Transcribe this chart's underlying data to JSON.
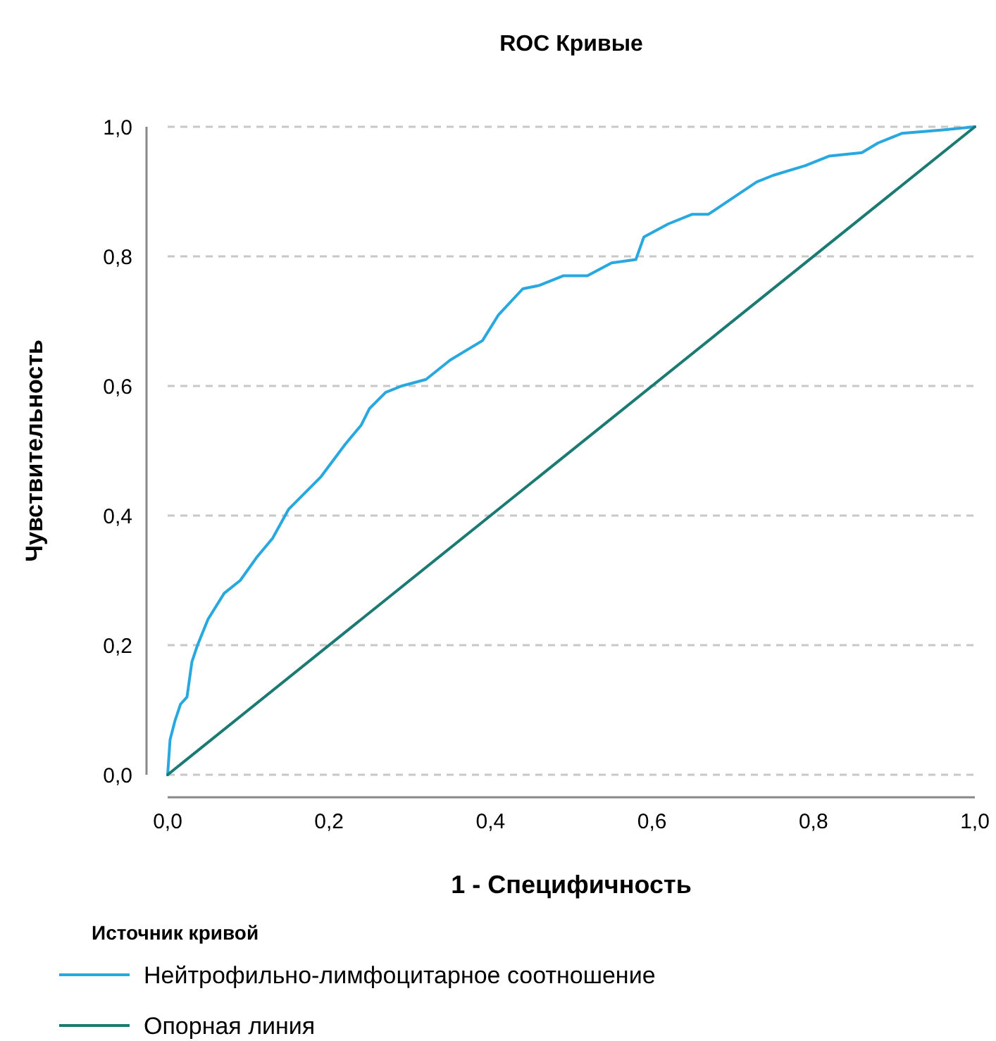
{
  "chart_data": {
    "type": "line",
    "title": "ROC Кривые",
    "xlabel": "1 - Специфичность",
    "ylabel": "Чувствительность",
    "legend_title": "Источник кривой",
    "legend": "bottom",
    "grid": "y",
    "line_style": "solid",
    "marker": "none",
    "xlim": [
      0,
      1
    ],
    "ylim": [
      0,
      1
    ],
    "xticks": [
      {
        "value": 0,
        "label": "0,0"
      },
      {
        "value": 0.2,
        "label": "0,2"
      },
      {
        "value": 0.4,
        "label": "0,4"
      },
      {
        "value": 0.6,
        "label": "0,6"
      },
      {
        "value": 0.8,
        "label": "0,8"
      },
      {
        "value": 1,
        "label": "1,0"
      }
    ],
    "yticks": [
      {
        "value": 0,
        "label": "0,0"
      },
      {
        "value": 0.2,
        "label": "0,2"
      },
      {
        "value": 0.4,
        "label": "0,4"
      },
      {
        "value": 0.6,
        "label": "0,6"
      },
      {
        "value": 0.8,
        "label": "0,8"
      },
      {
        "value": 1,
        "label": "1,0"
      }
    ],
    "series": [
      {
        "name": "Нейтрофильно-лимфоцитарное соотношение",
        "color": "#29a8e0",
        "x": [
          0,
          0.003,
          0.009,
          0.016,
          0.024,
          0.03,
          0.037,
          0.05,
          0.07,
          0.09,
          0.11,
          0.13,
          0.15,
          0.17,
          0.19,
          0.22,
          0.24,
          0.25,
          0.27,
          0.29,
          0.32,
          0.35,
          0.39,
          0.41,
          0.44,
          0.46,
          0.49,
          0.52,
          0.55,
          0.58,
          0.59,
          0.62,
          0.65,
          0.67,
          0.7,
          0.73,
          0.75,
          0.79,
          0.82,
          0.86,
          0.88,
          0.91,
          0.96,
          1
        ],
        "values": [
          0,
          0.054,
          0.083,
          0.109,
          0.12,
          0.174,
          0.2,
          0.24,
          0.28,
          0.3,
          0.335,
          0.365,
          0.41,
          0.435,
          0.46,
          0.51,
          0.54,
          0.565,
          0.59,
          0.6,
          0.61,
          0.64,
          0.67,
          0.71,
          0.75,
          0.755,
          0.77,
          0.77,
          0.79,
          0.795,
          0.83,
          0.85,
          0.865,
          0.865,
          0.89,
          0.915,
          0.925,
          0.94,
          0.955,
          0.96,
          0.975,
          0.99,
          0.995,
          1
        ]
      },
      {
        "name": "Опорная линия",
        "color": "#1b7a72",
        "x": [
          0,
          1
        ],
        "values": [
          0,
          1
        ]
      }
    ]
  }
}
